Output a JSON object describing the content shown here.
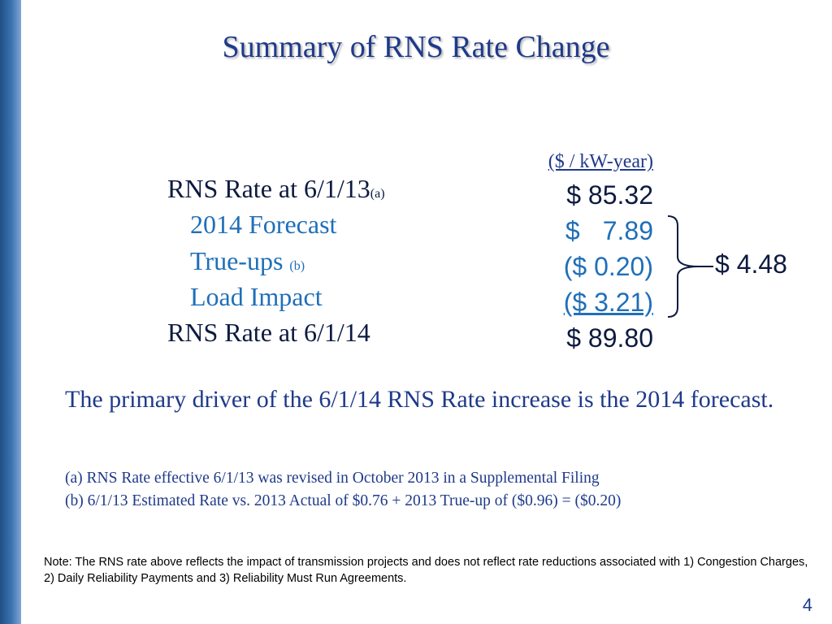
{
  "title": "Summary of RNS Rate Change",
  "table": {
    "unit_label": "($ / kW-year)",
    "rows": [
      {
        "label": "RNS Rate at 6/1/13",
        "note": "(a)",
        "value": "$ 85.32"
      },
      {
        "label": "2014 Forecast",
        "note": "",
        "value_symbol": "$",
        "value": "7.89"
      },
      {
        "label": "True-ups",
        "note": "(b)",
        "value": "($ 0.20)"
      },
      {
        "label": "Load Impact",
        "note": "",
        "value": "($ 3.21)"
      },
      {
        "label": "RNS Rate at 6/1/14",
        "note": "",
        "value": "$ 89.80"
      }
    ],
    "bracket_total": "$ 4.48"
  },
  "driver_text": "The primary driver of the 6/1/14 RNS Rate increase is the 2014 forecast.",
  "footnotes": [
    "(a)  RNS Rate effective 6/1/13 was revised in October 2013 in a Supplemental Filing",
    "(b)  6/1/13 Estimated Rate vs. 2013 Actual of $0.76 + 2013 True-up of ($0.96) = ($0.20)"
  ],
  "note": "Note:  The RNS rate above reflects the impact of transmission projects and does not reflect rate reductions associated with 1) Congestion Charges, 2) Daily Reliability Payments and 3) Reliability Must Run Agreements.",
  "page_number": "4",
  "colors": {
    "title": "#1f3a8a",
    "dark_text": "#0d1a40",
    "blue_text": "#1f6fb8",
    "side_bar": "#3d74b0"
  }
}
